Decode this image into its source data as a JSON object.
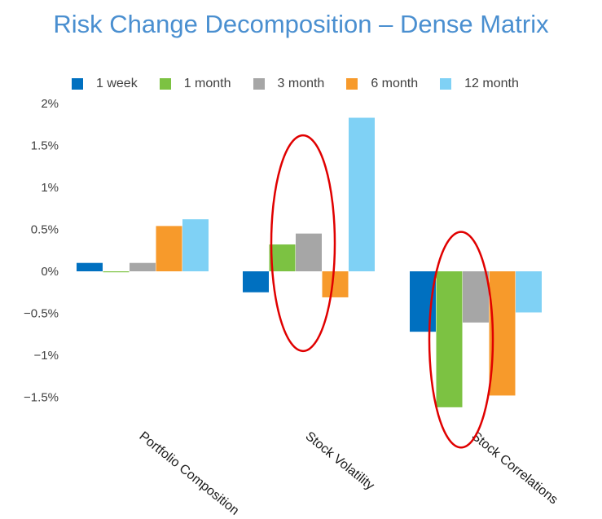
{
  "chart_data": {
    "type": "bar",
    "title": "Risk Change Decomposition – Dense Matrix",
    "categories": [
      "Portfolio Composition",
      "Stock Volatility",
      "Stock Correlations"
    ],
    "series": [
      {
        "name": "1 week",
        "color": "#0070c0",
        "values": [
          0.1,
          -0.25,
          -0.72
        ]
      },
      {
        "name": "1 month",
        "color": "#7cc242",
        "values": [
          -0.01,
          0.32,
          -1.62
        ]
      },
      {
        "name": "3 month",
        "color": "#a6a6a6",
        "values": [
          0.1,
          0.45,
          -0.61
        ]
      },
      {
        "name": "6 month",
        "color": "#f79a2b",
        "values": [
          0.54,
          -0.31,
          -1.48
        ]
      },
      {
        "name": "12 month",
        "color": "#7fd1f5",
        "values": [
          0.62,
          1.83,
          -0.49
        ]
      }
    ],
    "yticks": [
      {
        "value": 2,
        "label": "2%"
      },
      {
        "value": 1.5,
        "label": "1.5%"
      },
      {
        "value": 1,
        "label": "1%"
      },
      {
        "value": 0.5,
        "label": "0.5%"
      },
      {
        "value": 0,
        "label": "0%"
      },
      {
        "value": -0.5,
        "label": "−0.5%"
      },
      {
        "value": -1,
        "label": "−1%"
      },
      {
        "value": -1.5,
        "label": "−1.5%"
      }
    ],
    "ylim": [
      -1.85,
      2
    ],
    "grid": false,
    "legend_position": "top",
    "annotations": [
      {
        "type": "ellipse",
        "color": "#e00000",
        "category": "Stock Volatility",
        "y_range": [
          -0.95,
          1.62
        ]
      },
      {
        "type": "ellipse",
        "color": "#e00000",
        "category": "Stock Correlations",
        "y_range": [
          -2.1,
          0.47
        ]
      }
    ]
  }
}
